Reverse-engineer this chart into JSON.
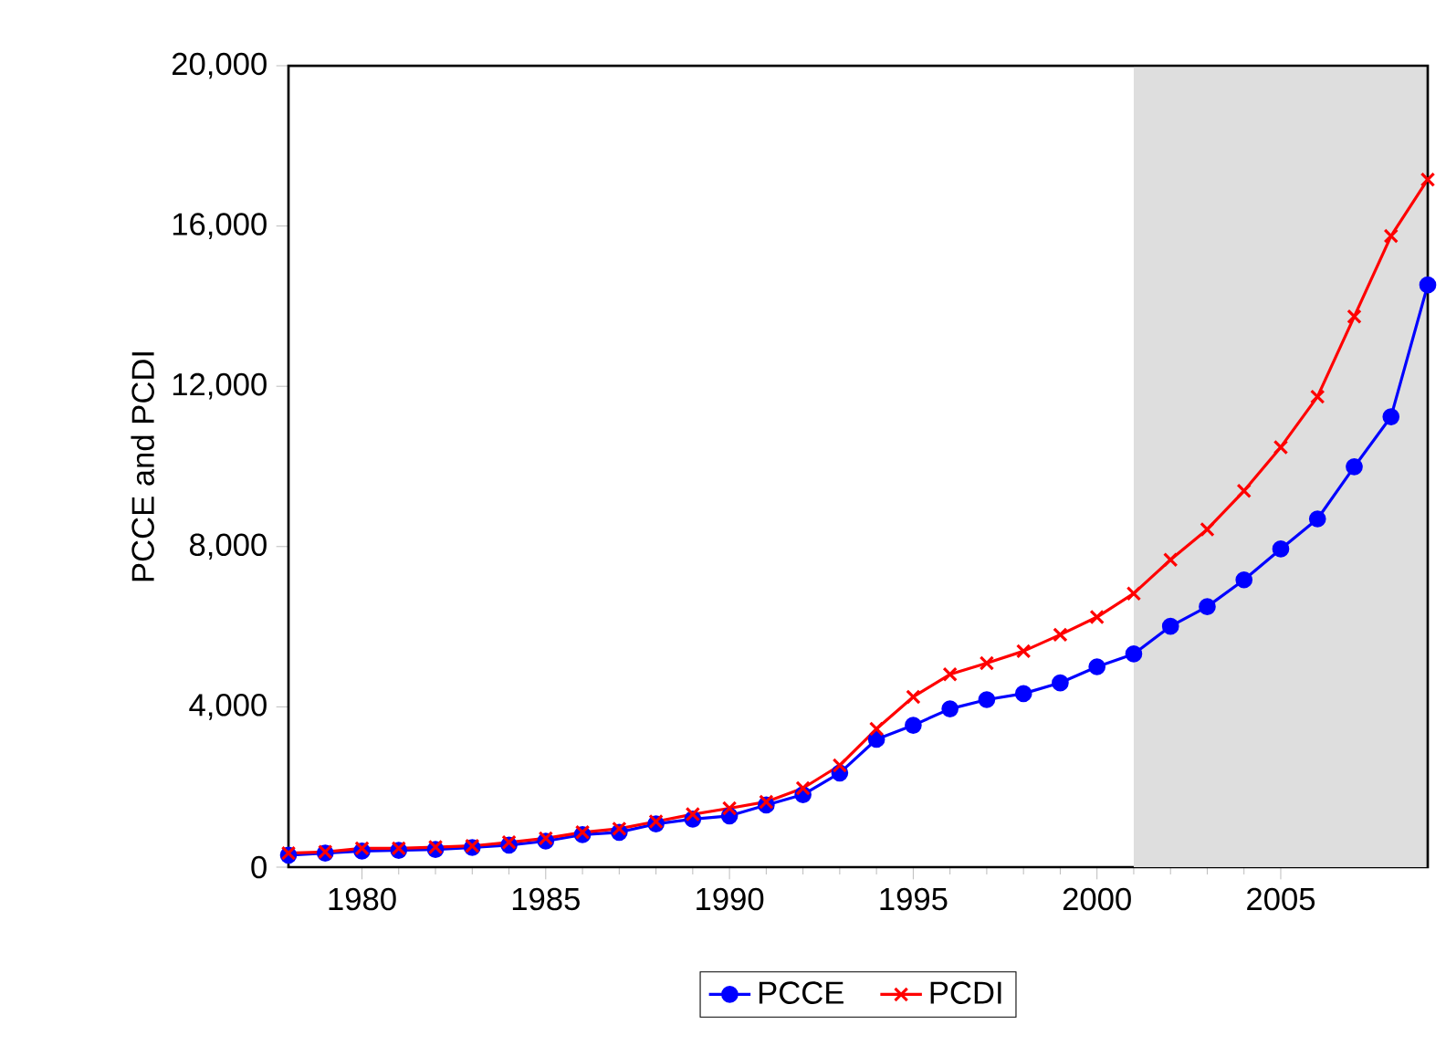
{
  "chart_data": {
    "type": "line",
    "ylabel": "PCCE and PCDI",
    "x": [
      1978,
      1979,
      1980,
      1981,
      1982,
      1983,
      1984,
      1985,
      1986,
      1987,
      1988,
      1989,
      1990,
      1991,
      1992,
      1993,
      1994,
      1995,
      1996,
      1997,
      1998,
      1999,
      2000,
      2001,
      2002,
      2003,
      2004,
      2005,
      2006,
      2007,
      2008,
      2009
    ],
    "series": [
      {
        "name": "PCCE",
        "color": "#0000ff",
        "marker": "circle",
        "values": [
          300,
          350,
          400,
          420,
          440,
          490,
          550,
          650,
          810,
          870,
          1080,
          1200,
          1280,
          1550,
          1810,
          2350,
          3190,
          3540,
          3950,
          4180,
          4330,
          4600,
          5000,
          5320,
          6010,
          6500,
          7170,
          7940,
          8690,
          9990,
          11240,
          14530
        ]
      },
      {
        "name": "PCDI",
        "color": "#ff0000",
        "marker": "cross",
        "values": [
          350,
          380,
          470,
          470,
          500,
          530,
          620,
          720,
          870,
          960,
          1140,
          1320,
          1470,
          1630,
          1970,
          2540,
          3450,
          4250,
          4810,
          5090,
          5390,
          5800,
          6240,
          6830,
          7670,
          8430,
          9390,
          10480,
          11740,
          13740,
          15750,
          17160
        ]
      }
    ],
    "xlim": [
      1978,
      2009
    ],
    "xticks": [
      1980,
      1985,
      1990,
      1995,
      2000,
      2005
    ],
    "ylim": [
      0,
      20000
    ],
    "yticks": [
      0,
      {
        "value": 4000,
        "label": "4,000"
      },
      {
        "value": 8000,
        "label": "8,000"
      },
      {
        "value": 12000,
        "label": "12,000"
      },
      {
        "value": 16000,
        "label": "16,000"
      },
      {
        "value": 20000,
        "label": "20,000"
      }
    ],
    "bands": [
      {
        "axis": "x",
        "from": 2001,
        "to": 2009,
        "color": "#dedede"
      }
    ],
    "legend": "bottom",
    "grid": false,
    "line_style": "solid"
  }
}
